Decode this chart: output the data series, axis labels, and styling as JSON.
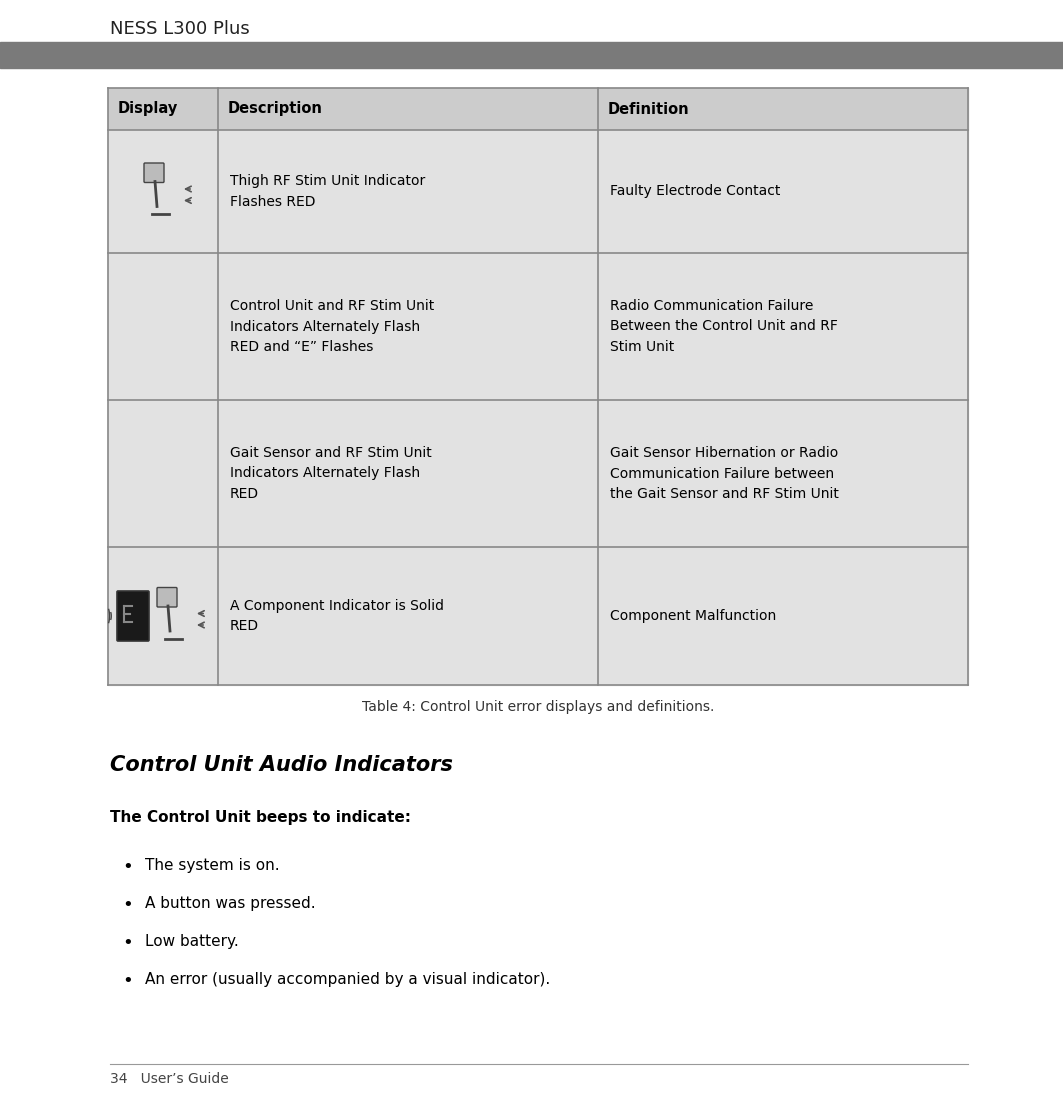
{
  "page_bg": "#ffffff",
  "header_bar_color": "#7a7a7a",
  "header_text": "NESS L300 Plus",
  "header_text_color": "#222222",
  "header_font_size": 13,
  "table_border_color": "#888888",
  "table_header_bg": "#cccccc",
  "table_row_bg": "#e2e2e2",
  "table_headers": [
    "Display",
    "Description",
    "Definition"
  ],
  "table_header_font_size": 10.5,
  "table_cell_font_size": 10,
  "table_rows": [
    {
      "has_image": true,
      "description": "Thigh RF Stim Unit Indicator\nFlashes RED",
      "definition": "Faulty Electrode Contact"
    },
    {
      "has_image": false,
      "description": "Control Unit and RF Stim Unit\nIndicators Alternately Flash\nRED and “E” Flashes",
      "definition": "Radio Communication Failure\nBetween the Control Unit and RF\nStim Unit"
    },
    {
      "has_image": false,
      "description": "Gait Sensor and RF Stim Unit\nIndicators Alternately Flash\nRED",
      "definition": "Gait Sensor Hibernation or Radio\nCommunication Failure between\nthe Gait Sensor and RF Stim Unit"
    },
    {
      "has_image": true,
      "description": "A Component Indicator is Solid\nRED",
      "definition": "Component Malfunction"
    }
  ],
  "caption": "Table 4: Control Unit error displays and definitions.",
  "caption_font_size": 10,
  "section_title": "Control Unit Audio Indicators",
  "section_title_font_size": 15,
  "subheading": "The Control Unit beeps to indicate:",
  "subheading_font_size": 11,
  "bullet_items": [
    "The system is on.",
    "A button was pressed.",
    "Low battery.",
    "An error (usually accompanied by a visual indicator)."
  ],
  "bullet_font_size": 11,
  "footer_line_color": "#999999",
  "footer_text": "34   User’s Guide",
  "footer_font_size": 10
}
